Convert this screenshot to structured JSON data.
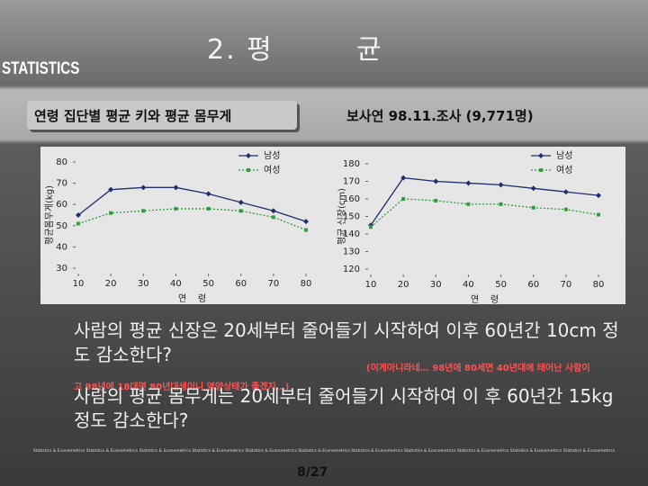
{
  "header": {
    "title": "2. 평        균",
    "brand": "STATISTICS",
    "subtitle": "연령 집단별 평균 키와 평균 몸무게",
    "source": "보사연 98.11.조사 (9,771명)"
  },
  "chart_data": [
    {
      "type": "line",
      "ylabel": "평균몸무게(kg)",
      "xlabel": "연    령",
      "x": [
        10,
        20,
        30,
        40,
        50,
        60,
        70,
        80
      ],
      "xlim": [
        10,
        80
      ],
      "xticks": [
        10,
        20,
        30,
        40,
        50,
        60,
        70,
        80
      ],
      "ylim": [
        30,
        80
      ],
      "yticks": [
        30,
        40,
        50,
        60,
        70,
        80
      ],
      "legend": "upper right",
      "series": [
        {
          "name": "남성",
          "color": "#1f2f6f",
          "style": "solid",
          "marker": "diamond",
          "values": [
            55,
            67,
            68,
            68,
            65,
            61,
            57,
            52
          ]
        },
        {
          "name": "여성",
          "color": "#2e9e3e",
          "style": "dotted",
          "marker": "square",
          "values": [
            51,
            56,
            57,
            58,
            58,
            57,
            54,
            48
          ]
        }
      ]
    },
    {
      "type": "line",
      "ylabel": "평균 신장(cm)",
      "xlabel": "연    령",
      "x": [
        10,
        20,
        30,
        40,
        50,
        60,
        70,
        80
      ],
      "xlim": [
        10,
        80
      ],
      "xticks": [
        10,
        20,
        30,
        40,
        50,
        60,
        70,
        80
      ],
      "ylim": [
        120,
        180
      ],
      "yticks": [
        120,
        130,
        140,
        150,
        160,
        170,
        180
      ],
      "legend": "upper right",
      "series": [
        {
          "name": "남성",
          "color": "#1f2f6f",
          "style": "solid",
          "marker": "diamond",
          "values": [
            145,
            172,
            170,
            169,
            168,
            166,
            164,
            162
          ]
        },
        {
          "name": "여성",
          "color": "#2e9e3e",
          "style": "dotted",
          "marker": "square",
          "values": [
            144,
            160,
            159,
            157,
            157,
            155,
            154,
            151
          ]
        }
      ]
    }
  ],
  "body": {
    "paragraph1": "사람의 평균 신장은 20세부터 줄어들기 시작하여 이후 60년간 10cm 정도 감소한다?",
    "note_line1": "(이게아니라네… 98년에 80세면 40년대에 태어난 사람이",
    "note_line2": "고 98년에 18대면 80년대생이니 영양상태가 좋겠지…)",
    "paragraph2": "사람의 평균 몸무게는 20세부터 줄어들기 시작하여 이 후 60년간 15kg 정도 감소한다?"
  },
  "footer": {
    "text": "Statistics & Econometrics Statistics & Econometrics Statistics & Econometrics Statistics & Econometrics Statistics & Econometrics Statistics & Econometrics Statistics & Econometrics Statistics & Econometrics Statistics & Econometrics Statistics & Econometrics Statistics & Econometrics",
    "page": "8/27"
  }
}
